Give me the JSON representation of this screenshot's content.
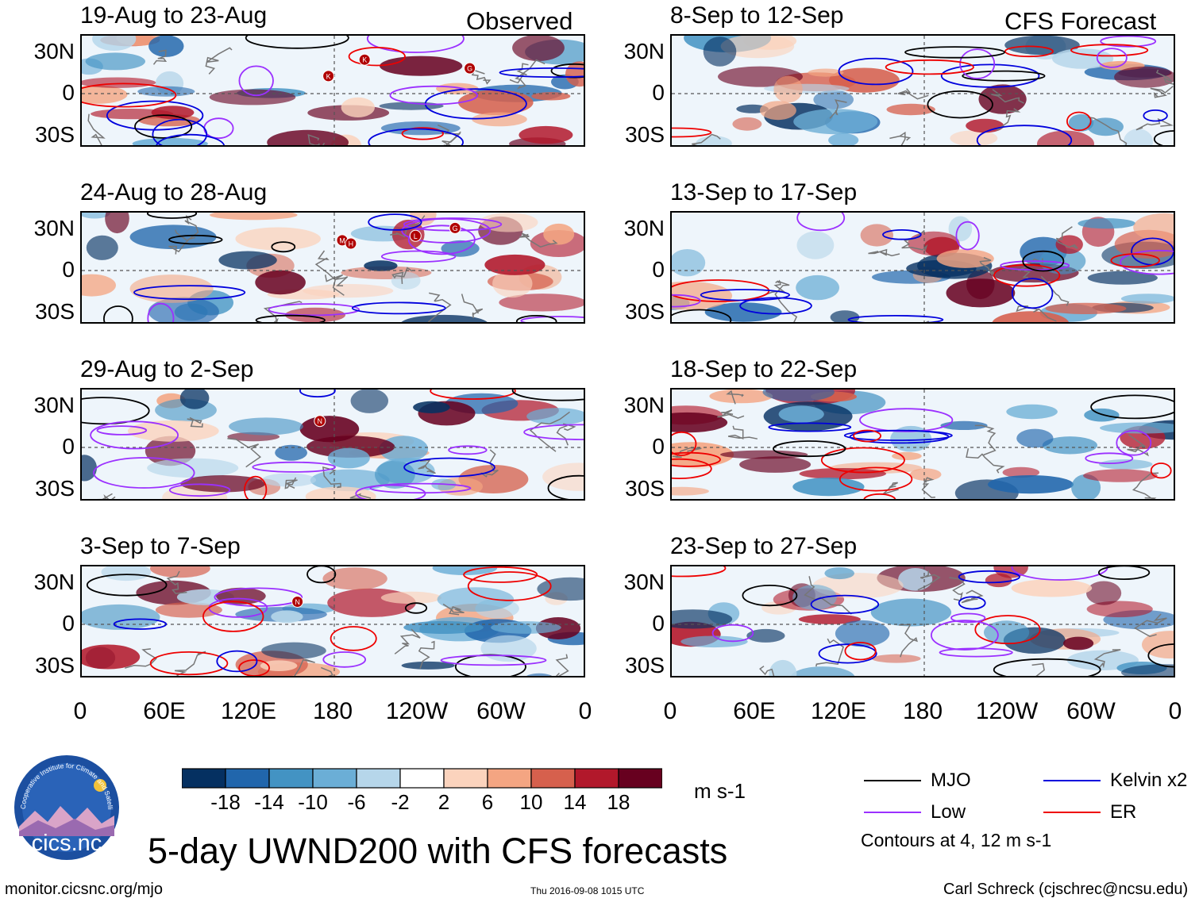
{
  "corner_labels": {
    "observed": "Observed",
    "forecast": "CFS Forecast"
  },
  "lat_labels": [
    "30N",
    "0",
    "30S"
  ],
  "lon_labels": [
    "0",
    "60E",
    "120E",
    "180",
    "120W",
    "60W",
    "0"
  ],
  "chart_data": [
    {
      "type": "heatmap",
      "title": "19-Aug to 23-Aug",
      "group": "Observed",
      "xlabels": [
        "0",
        "60E",
        "120E",
        "180",
        "120W",
        "60W",
        "0"
      ],
      "ylabels": [
        "30N",
        "0",
        "30S"
      ],
      "storm_markers": [
        "K",
        "K",
        "G"
      ]
    },
    {
      "type": "heatmap",
      "title": "24-Aug to 28-Aug",
      "group": "Observed",
      "xlabels": [
        "0",
        "60E",
        "120E",
        "180",
        "120W",
        "60W",
        "0"
      ],
      "ylabels": [
        "30N",
        "0",
        "30S"
      ],
      "storm_markers": [
        "M",
        "L",
        "H",
        "G"
      ]
    },
    {
      "type": "heatmap",
      "title": "29-Aug to 2-Sep",
      "group": "Observed",
      "xlabels": [
        "0",
        "60E",
        "120E",
        "180",
        "120W",
        "60W",
        "0"
      ],
      "ylabels": [
        "30N",
        "0",
        "30S"
      ],
      "storm_markers": [
        "N"
      ]
    },
    {
      "type": "heatmap",
      "title": "3-Sep to 7-Sep",
      "group": "Observed",
      "xlabels": [
        "0",
        "60E",
        "120E",
        "180",
        "120W",
        "60W",
        "0"
      ],
      "ylabels": [
        "30N",
        "0",
        "30S"
      ],
      "storm_markers": [
        "N"
      ]
    },
    {
      "type": "heatmap",
      "title": "8-Sep to 12-Sep",
      "group": "CFS Forecast",
      "xlabels": [
        "0",
        "60E",
        "120E",
        "180",
        "120W",
        "60W",
        "0"
      ],
      "ylabels": [
        "30N",
        "0",
        "30S"
      ],
      "storm_markers": []
    },
    {
      "type": "heatmap",
      "title": "13-Sep to 17-Sep",
      "group": "CFS Forecast",
      "xlabels": [
        "0",
        "60E",
        "120E",
        "180",
        "120W",
        "60W",
        "0"
      ],
      "ylabels": [
        "30N",
        "0",
        "30S"
      ],
      "storm_markers": []
    },
    {
      "type": "heatmap",
      "title": "18-Sep to 22-Sep",
      "group": "CFS Forecast",
      "xlabels": [
        "0",
        "60E",
        "120E",
        "180",
        "120W",
        "60W",
        "0"
      ],
      "ylabels": [
        "30N",
        "0",
        "30S"
      ],
      "storm_markers": []
    },
    {
      "type": "heatmap",
      "title": "23-Sep to 27-Sep",
      "group": "CFS Forecast",
      "xlabels": [
        "0",
        "60E",
        "120E",
        "180",
        "120W",
        "60W",
        "0"
      ],
      "ylabels": [
        "30N",
        "0",
        "30S"
      ],
      "storm_markers": []
    }
  ],
  "colorbar": {
    "ticks": [
      "-18",
      "-14",
      "-10",
      "-6",
      "-2",
      "2",
      "6",
      "10",
      "14",
      "18"
    ],
    "colors": [
      "#053061",
      "#2166ac",
      "#4393c3",
      "#6baed6",
      "#b6d6ea",
      "#ffffff",
      "#fbd3bd",
      "#f4a582",
      "#d6604d",
      "#b2182b",
      "#67001f"
    ],
    "units": "m s-1"
  },
  "legend": {
    "items": [
      {
        "label": "MJO",
        "color": "#000000"
      },
      {
        "label": "Kelvin x2",
        "color": "#0000dd"
      },
      {
        "label": "Low",
        "color": "#9b30ff"
      },
      {
        "label": "ER",
        "color": "#ee0000"
      }
    ],
    "note": "Contours at 4, 12 m s-1"
  },
  "main_title": "5-day UWND200 with CFS forecasts",
  "logo": {
    "text": "cics.nc",
    "arc_text": "Cooperative Institute for Climate and Satellites"
  },
  "footer": {
    "url": "monitor.cicsnc.org/mjo",
    "timestamp": "Thu 2016-09-08 1015 UTC",
    "author": "Carl Schreck (cjschrec@ncsu.edu)"
  }
}
